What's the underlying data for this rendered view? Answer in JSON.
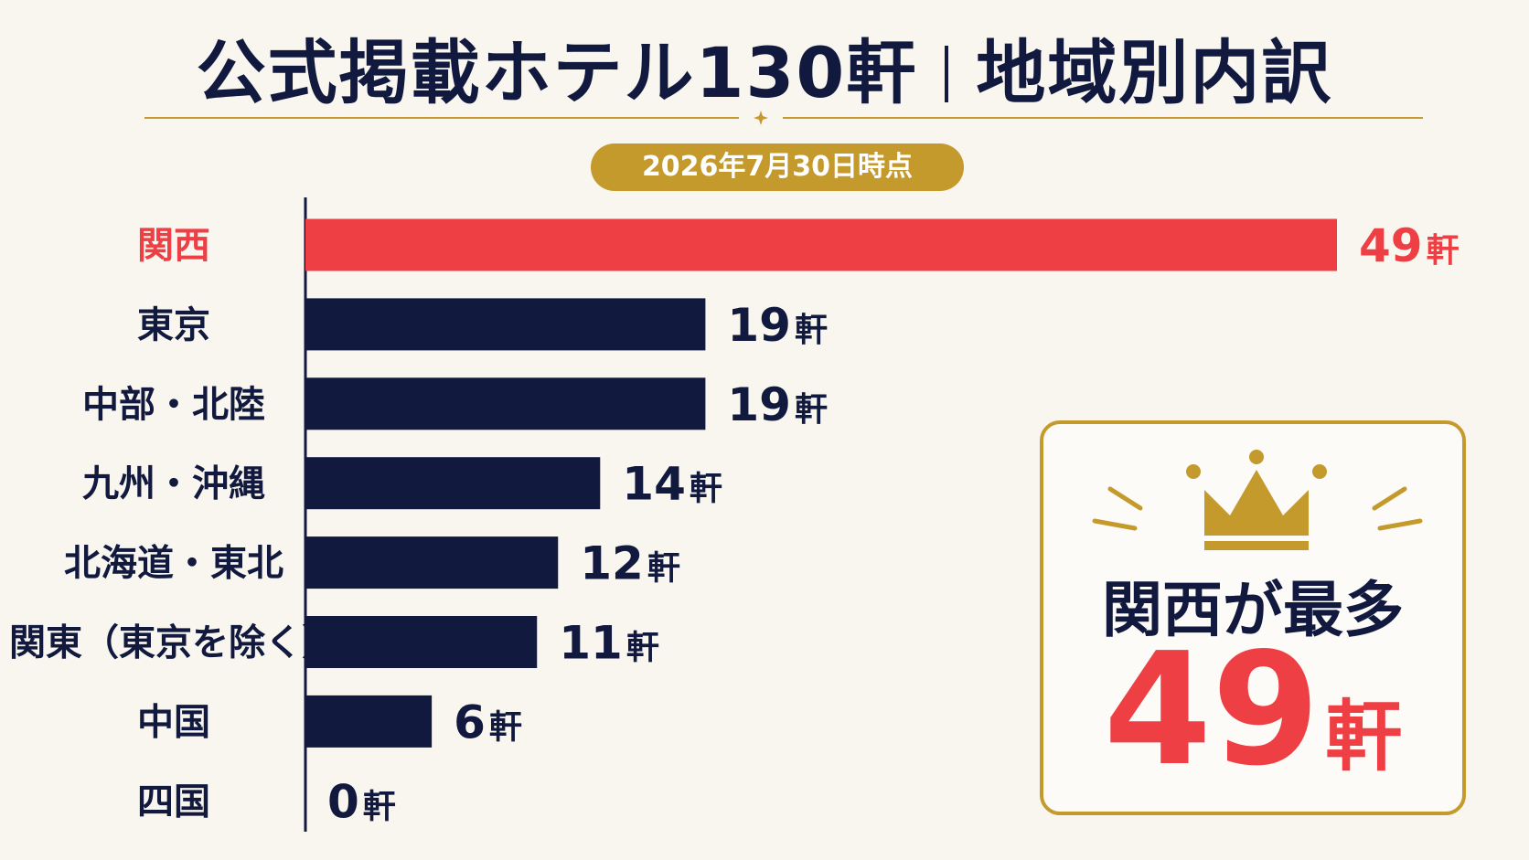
{
  "header": {
    "title_left": "公式掲載ホテル130軒",
    "title_right": "地域別内訳",
    "date_badge": "2026年7月30日時点"
  },
  "colors": {
    "highlight": "#ee3f45",
    "bar": "#12193f",
    "gold": "#c49a2c",
    "background": "#f8f6ef"
  },
  "chart_data": {
    "type": "bar",
    "orientation": "horizontal",
    "categories": [
      "関西",
      "東京",
      "中部・北陸",
      "九州・沖縄",
      "北海道・東北",
      "関東（東京を除く）",
      "中国",
      "四国"
    ],
    "values": [
      49,
      19,
      19,
      14,
      12,
      11,
      6,
      0
    ],
    "unit": "軒",
    "highlight_category": "関西",
    "xlim": [
      0,
      49
    ],
    "grid": false,
    "legend": "none"
  },
  "callout": {
    "icon": "crown-icon",
    "text": "関西が最多",
    "value": "49",
    "unit": "軒"
  }
}
